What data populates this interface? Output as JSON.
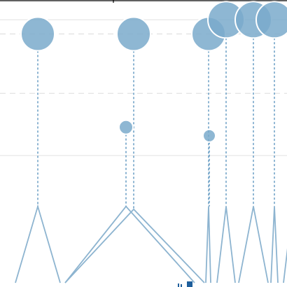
{
  "chart_data": {
    "type": "scatter",
    "title": "",
    "xlabel": "",
    "ylabel": "",
    "grid": true,
    "xlim": [
      0,
      410
    ],
    "ylim": [
      0,
      100
    ],
    "gridlines_solid": [
      93,
      45
    ],
    "gridlines_dashed": [
      88,
      67
    ],
    "colors": {
      "bubble": "#7aaacb",
      "bubble_stroke": "#ffffff",
      "stem": "#5b95bf",
      "triangle": "#8db4d0",
      "marker": "#1f5f9c",
      "frame": "#000000"
    },
    "points": [
      {
        "x": 54,
        "y": 88,
        "r": 24,
        "base": 27
      },
      {
        "x": 191,
        "y": 88,
        "r": 24,
        "base": 26
      },
      {
        "x": 298,
        "y": 88,
        "r": 24,
        "base": 27
      },
      {
        "x": 323,
        "y": 93,
        "r": 26,
        "base": 27
      },
      {
        "x": 362,
        "y": 93,
        "r": 26,
        "base": 27
      },
      {
        "x": 392,
        "y": 93,
        "r": 26,
        "base": 27
      },
      {
        "x": 180,
        "y": 55,
        "r": 10,
        "base": 27
      },
      {
        "x": 299,
        "y": 52,
        "r": 9,
        "base": 27
      }
    ],
    "peaks": [
      {
        "left": 22,
        "apex": 54,
        "right": 86,
        "height": 27
      },
      {
        "left": 93,
        "apex": 180,
        "right": 278,
        "height": 27
      },
      {
        "left": 93,
        "apex": 191,
        "right": 292,
        "height": 26
      },
      {
        "left": 294,
        "apex": 298,
        "right": 301,
        "height": 27
      },
      {
        "left": 310,
        "apex": 323,
        "right": 336,
        "height": 27
      },
      {
        "left": 341,
        "apex": 362,
        "right": 383,
        "height": 27
      },
      {
        "left": 387,
        "apex": 392,
        "right": 397,
        "height": 27
      },
      {
        "left": 405,
        "apex": 418,
        "right": 431,
        "height": 27
      }
    ],
    "markers": [
      {
        "x": 256,
        "kind": "small"
      },
      {
        "x": 271,
        "kind": "square"
      }
    ]
  }
}
